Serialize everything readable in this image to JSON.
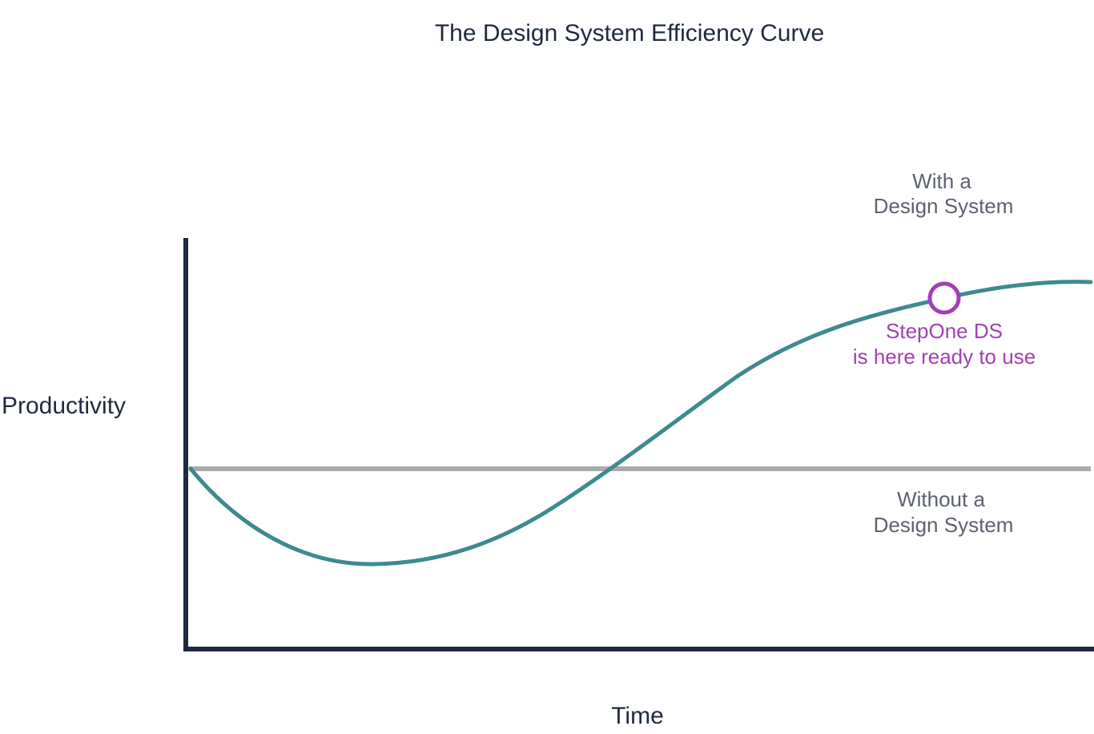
{
  "title": "The Design System Efficiency Curve",
  "y_axis_label": "Productivity",
  "x_axis_label": "Time",
  "with_label": [
    "With a",
    "Design System"
  ],
  "without_label": [
    "Without a",
    "Design System"
  ],
  "marker_label": [
    "StepOne DS",
    "is here ready to use"
  ]
}
